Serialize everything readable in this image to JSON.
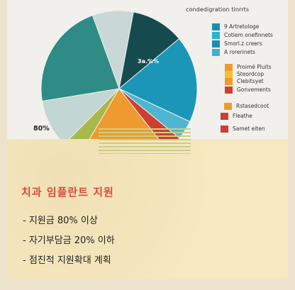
{
  "chart_data": {
    "type": "pie",
    "subtitle": "condedigration tinrrts",
    "slices": [
      {
        "label": "",
        "value": 8.5,
        "color": "#c9d7d6"
      },
      {
        "label": "",
        "value": 11,
        "color": "#154a4f"
      },
      {
        "label": "",
        "value": 18,
        "color": "#1b96b6"
      },
      {
        "label": "",
        "value": 4,
        "color": "#4fb6d2"
      },
      {
        "label": "",
        "value": 3.5,
        "color": "#cf3f2f"
      },
      {
        "label": "",
        "value": 19,
        "color": "#ef9a2f"
      },
      {
        "label": "",
        "value": 4,
        "color": "#a9b84a"
      },
      {
        "label": "",
        "value": 10,
        "color": "#c2d6d3"
      },
      {
        "label": "",
        "value": 22,
        "color": "#2e8b85"
      }
    ],
    "data_labels": {
      "large": "80%",
      "small": "3a.%%"
    },
    "legend": [
      {
        "label": "9 Artretologe",
        "color": "#1b8db0"
      },
      {
        "label": "Cotiem onefinnets",
        "color": "#2bb3cf"
      },
      {
        "label": "Smorl.z creers",
        "color": "#1b8db0"
      },
      {
        "label": "A rorerinets",
        "color": "#3fb0cf"
      },
      {
        "label": "Proimé Pluits",
        "color": "#ef9a2f"
      },
      {
        "label": "Steordcop",
        "color": "#f2c12e"
      },
      {
        "label": "Clebitsyet",
        "color": "#ef9a2f"
      },
      {
        "label": "Gonvements",
        "color": "#cf3f2f"
      },
      {
        "label": "Rstasedcoot",
        "color": "#ef9a2f"
      },
      {
        "label": "Fleathe",
        "color": "#cf3f2f"
      },
      {
        "label": "Samet eiten",
        "color": "#cf3f2f"
      }
    ]
  },
  "note": {
    "title": "치과 임플란트 지원",
    "items": [
      "- 지원금 80% 이상",
      "- 자기부담금 20% 이하",
      "- 점진적 지원확대 계획"
    ]
  }
}
